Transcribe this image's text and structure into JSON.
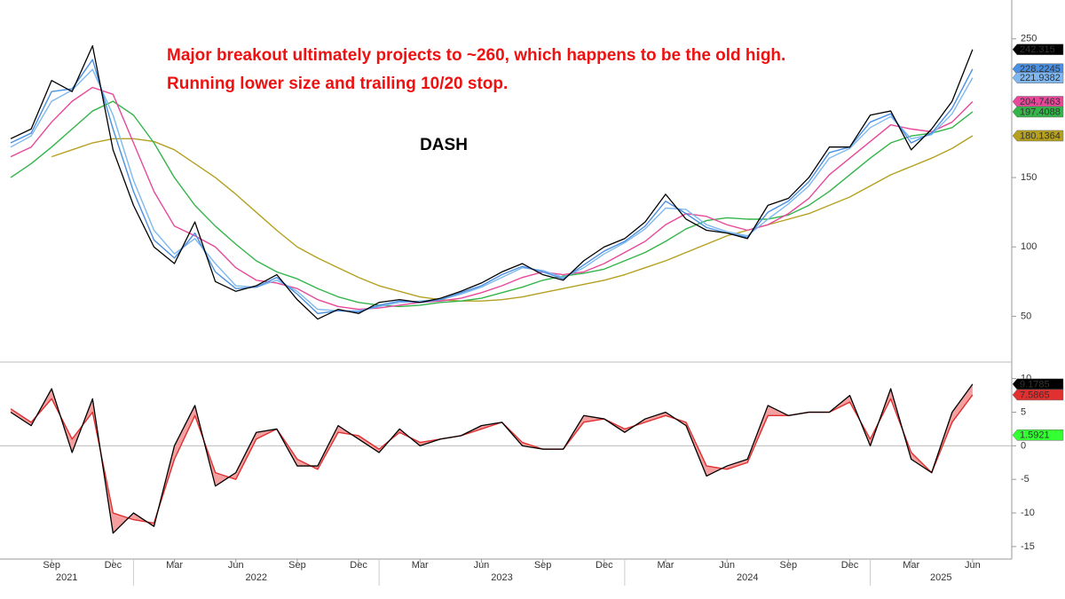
{
  "chart_data": [
    {
      "type": "line",
      "title": "DASH",
      "annotations": [
        "Major breakout ultimately projects to ~260, which happens to be the old high.",
        "Running lower size and trailing 10/20 stop."
      ],
      "x": [
        "2021-07",
        "2021-08",
        "2021-09",
        "2021-10",
        "2021-11",
        "2021-12",
        "2022-01",
        "2022-02",
        "2022-03",
        "2022-04",
        "2022-05",
        "2022-06",
        "2022-07",
        "2022-08",
        "2022-09",
        "2022-10",
        "2022-11",
        "2022-12",
        "2023-01",
        "2023-02",
        "2023-03",
        "2023-04",
        "2023-05",
        "2023-06",
        "2023-07",
        "2023-08",
        "2023-09",
        "2023-10",
        "2023-11",
        "2023-12",
        "2024-01",
        "2024-02",
        "2024-03",
        "2024-04",
        "2024-05",
        "2024-06",
        "2024-07",
        "2024-08",
        "2024-09",
        "2024-10",
        "2024-11",
        "2024-12",
        "2025-01",
        "2025-02",
        "2025-03",
        "2025-04",
        "2025-05",
        "2025-06"
      ],
      "xlim": [
        "2021-06",
        "2025-08"
      ],
      "xticks": [
        {
          "value": "2021-09",
          "label": "Sep"
        },
        {
          "value": "2021-12",
          "label": "Dec"
        },
        {
          "value": "2022-03",
          "label": "Mar"
        },
        {
          "value": "2022-06",
          "label": "Jun"
        },
        {
          "value": "2022-09",
          "label": "Sep"
        },
        {
          "value": "2022-12",
          "label": "Dec"
        },
        {
          "value": "2023-03",
          "label": "Mar"
        },
        {
          "value": "2023-06",
          "label": "Jun"
        },
        {
          "value": "2023-09",
          "label": "Sep"
        },
        {
          "value": "2023-12",
          "label": "Dec"
        },
        {
          "value": "2024-03",
          "label": "Mar"
        },
        {
          "value": "2024-06",
          "label": "Jun"
        },
        {
          "value": "2024-09",
          "label": "Sep"
        },
        {
          "value": "2024-12",
          "label": "Dec"
        },
        {
          "value": "2025-03",
          "label": "Mar"
        },
        {
          "value": "2025-06",
          "label": "Jun"
        }
      ],
      "years": [
        "2021",
        "2022",
        "2023",
        "2024",
        "2025"
      ],
      "ylim": [
        17,
        278
      ],
      "yticks": [
        50,
        100,
        150,
        250
      ],
      "series": [
        {
          "color": "#000000",
          "values": [
            178,
            185,
            220,
            212,
            245,
            170,
            130,
            100,
            88,
            118,
            75,
            68,
            72,
            80,
            62,
            48,
            55,
            52,
            60,
            62,
            60,
            63,
            68,
            74,
            82,
            88,
            80,
            76,
            90,
            100,
            106,
            118,
            138,
            120,
            112,
            110,
            106,
            130,
            135,
            150,
            172,
            172,
            195,
            198,
            170,
            185,
            205,
            242.315
          ]
        },
        {
          "color": "#4a90e2",
          "values": [
            175,
            182,
            212,
            214,
            235,
            185,
            140,
            105,
            92,
            110,
            82,
            70,
            71,
            78,
            66,
            52,
            54,
            53,
            58,
            61,
            60,
            62,
            67,
            72,
            80,
            86,
            82,
            77,
            87,
            97,
            104,
            115,
            133,
            124,
            114,
            110,
            107,
            125,
            133,
            147,
            168,
            172,
            190,
            196,
            175,
            182,
            200,
            228.2245
          ]
        },
        {
          "color": "#7fb8f0",
          "values": [
            172,
            180,
            205,
            213,
            228,
            195,
            148,
            112,
            95,
            106,
            88,
            72,
            71,
            76,
            68,
            55,
            54,
            54,
            57,
            60,
            61,
            62,
            66,
            71,
            78,
            85,
            83,
            78,
            85,
            95,
            103,
            113,
            128,
            127,
            116,
            111,
            108,
            120,
            131,
            144,
            164,
            171,
            186,
            194,
            178,
            181,
            196,
            221.9382
          ]
        },
        {
          "color": "#e8489a",
          "values": [
            165,
            172,
            190,
            205,
            215,
            210,
            175,
            140,
            115,
            108,
            100,
            85,
            76,
            74,
            70,
            62,
            57,
            55,
            56,
            58,
            60,
            61,
            63,
            67,
            72,
            78,
            82,
            80,
            82,
            88,
            96,
            104,
            116,
            124,
            122,
            116,
            112,
            116,
            124,
            135,
            152,
            164,
            176,
            188,
            185,
            183,
            190,
            204.7463
          ]
        },
        {
          "color": "#33b54a",
          "values": [
            150,
            160,
            172,
            185,
            198,
            205,
            195,
            175,
            150,
            130,
            115,
            102,
            90,
            82,
            77,
            70,
            64,
            60,
            58,
            57,
            58,
            60,
            61,
            63,
            67,
            71,
            76,
            79,
            81,
            84,
            90,
            96,
            104,
            113,
            119,
            121,
            120,
            120,
            123,
            130,
            140,
            152,
            164,
            175,
            180,
            182,
            186,
            197.4088
          ]
        },
        {
          "color": "#b5a020",
          "values": [
            null,
            null,
            165,
            170,
            175,
            178,
            178,
            176,
            170,
            160,
            150,
            138,
            125,
            112,
            100,
            92,
            85,
            78,
            72,
            68,
            64,
            62,
            61,
            61,
            62,
            64,
            67,
            70,
            73,
            76,
            80,
            85,
            90,
            96,
            102,
            108,
            112,
            116,
            120,
            124,
            130,
            136,
            144,
            152,
            158,
            164,
            171,
            180.1364
          ]
        }
      ]
    },
    {
      "type": "line",
      "ylim": [
        -16.6,
        12.2
      ],
      "yticks": [
        10,
        5,
        0,
        -5,
        -10,
        -15
      ],
      "fill_color": "#f4a0a0",
      "series": [
        {
          "color": "#000000",
          "values": [
            5,
            3,
            8.5,
            -1,
            7,
            -13,
            -10,
            -12,
            0,
            6,
            -6,
            -4,
            2,
            2.5,
            -3,
            -3,
            3,
            1,
            -1,
            2.5,
            0,
            1,
            1.5,
            3,
            3.5,
            0,
            -0.5,
            -0.5,
            4.5,
            4,
            2,
            4,
            5,
            3,
            -4.5,
            -3,
            -2,
            6,
            4.5,
            5,
            5,
            7.5,
            0,
            8.5,
            -2,
            -4,
            5,
            9.1785
          ]
        },
        {
          "color": "#e03030",
          "values": [
            5.5,
            3.5,
            7,
            1,
            5,
            -10,
            -11,
            -11.5,
            -2,
            4.5,
            -4,
            -5,
            1,
            2.5,
            -2,
            -3.5,
            2,
            1.5,
            -0.5,
            2,
            0.5,
            1,
            1.5,
            2.5,
            3.5,
            0.5,
            -0.5,
            -0.5,
            3.5,
            4,
            2.5,
            3.5,
            4.5,
            3.5,
            -3,
            -3.5,
            -2.5,
            4.5,
            4.5,
            5,
            5,
            6.5,
            1,
            7,
            -1,
            -4,
            3.5,
            7.5865
          ]
        }
      ],
      "marker": {
        "value": 1.5921,
        "color": "#33ff33"
      }
    }
  ]
}
